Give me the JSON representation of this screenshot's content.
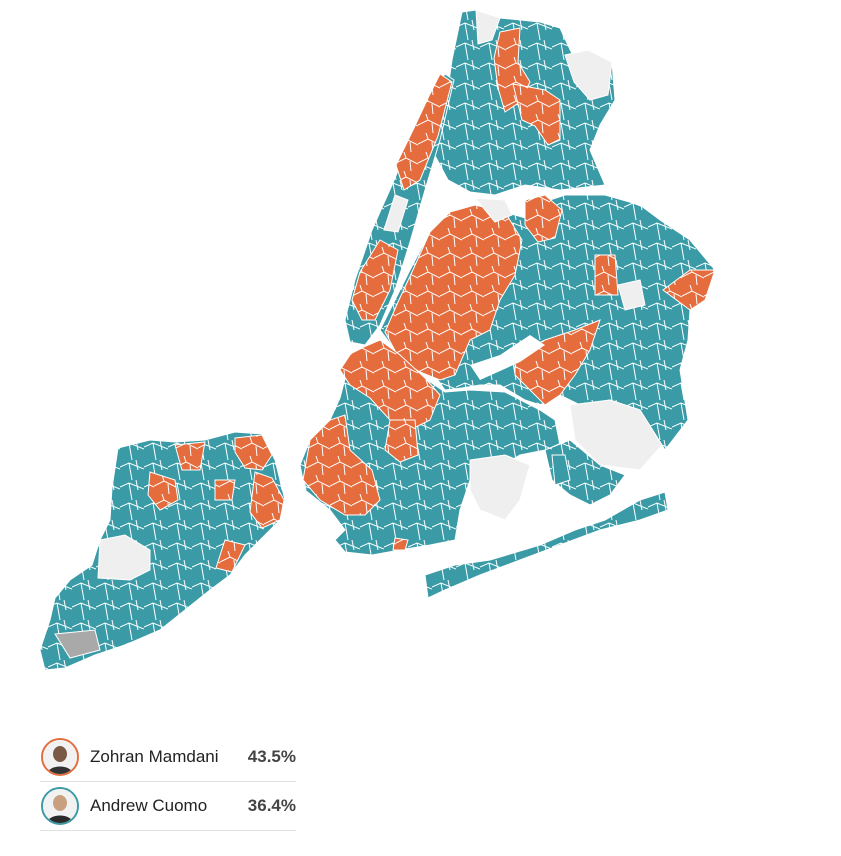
{
  "colors": {
    "mamdani": "#e46c3d",
    "cuomo": "#3a9aa6",
    "no_data": "#efefef",
    "tie": "#a9a9a9",
    "border": "#ffffff"
  },
  "legend": {
    "candidates": [
      {
        "name": "Zohran Mamdani",
        "percent": "43.5%",
        "color": "#e46c3d",
        "icon": "candidate-photo-icon"
      },
      {
        "name": "Andrew Cuomo",
        "percent": "36.4%",
        "color": "#3a9aa6",
        "icon": "candidate-photo-icon"
      }
    ]
  }
}
